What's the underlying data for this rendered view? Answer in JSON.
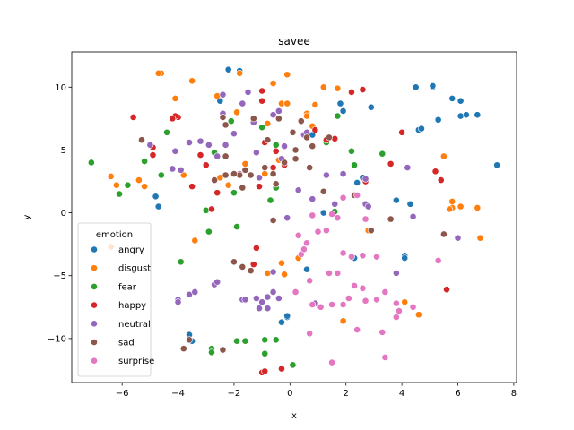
{
  "chart_data": {
    "type": "scatter",
    "title": "savee",
    "xlabel": "x",
    "ylabel": "y",
    "xlim": [
      -7.8,
      8.1
    ],
    "ylim": [
      -13.5,
      12.8
    ],
    "xticks": [
      -6,
      -4,
      -2,
      0,
      2,
      4,
      6,
      8
    ],
    "yticks": [
      -10,
      -5,
      0,
      5,
      10
    ],
    "grid": false,
    "legend": {
      "title": "emotion",
      "placement": "lower-left"
    },
    "series": [
      {
        "name": "angry",
        "color": "#1f77b4",
        "points": [
          [
            -2.2,
            11.4
          ],
          [
            -1.8,
            11.3
          ],
          [
            -2.5,
            8.9
          ],
          [
            4.5,
            10.0
          ],
          [
            5.1,
            10.0
          ],
          [
            5.1,
            10.1
          ],
          [
            5.8,
            9.1
          ],
          [
            6.1,
            8.9
          ],
          [
            1.8,
            8.7
          ],
          [
            2.9,
            8.4
          ],
          [
            1.9,
            8.1
          ],
          [
            6.1,
            7.7
          ],
          [
            6.3,
            7.8
          ],
          [
            6.7,
            7.8
          ],
          [
            5.3,
            7.4
          ],
          [
            4.6,
            6.6
          ],
          [
            4.7,
            6.7
          ],
          [
            0.8,
            6.2
          ],
          [
            7.4,
            3.8
          ],
          [
            2.4,
            2.4
          ],
          [
            2.6,
            2.8
          ],
          [
            3.8,
            1.0
          ],
          [
            4.3,
            0.7
          ],
          [
            -4.8,
            1.3
          ],
          [
            -4.7,
            0.5
          ],
          [
            2.9,
            -1.4
          ],
          [
            1.2,
            0.0
          ],
          [
            2.3,
            -3.6
          ],
          [
            0.6,
            -4.5
          ],
          [
            4.1,
            -3.4
          ],
          [
            4.1,
            -3.6
          ],
          [
            -0.1,
            -8.3
          ],
          [
            -0.1,
            -8.2
          ],
          [
            -0.3,
            -8.7
          ],
          [
            -3.6,
            -9.7
          ],
          [
            -3.5,
            -10.2
          ]
        ]
      },
      {
        "name": "disgust",
        "color": "#ff7f0e",
        "points": [
          [
            -4.6,
            11.1
          ],
          [
            -4.7,
            11.1
          ],
          [
            -1.8,
            11.1
          ],
          [
            -0.1,
            11.0
          ],
          [
            -3.5,
            10.5
          ],
          [
            -0.6,
            10.3
          ],
          [
            1.2,
            10.0
          ],
          [
            1.7,
            9.9
          ],
          [
            -0.3,
            8.7
          ],
          [
            -0.1,
            8.7
          ],
          [
            0.9,
            8.6
          ],
          [
            -2.6,
            9.3
          ],
          [
            -4.1,
            9.1
          ],
          [
            -1.9,
            8.0
          ],
          [
            0.6,
            7.9
          ],
          [
            0.6,
            7.7
          ],
          [
            -0.8,
            7.1
          ],
          [
            0.8,
            6.9
          ],
          [
            5.5,
            4.5
          ],
          [
            -0.4,
            4.2
          ],
          [
            -1.6,
            3.9
          ],
          [
            -3.8,
            3.0
          ],
          [
            -2.5,
            2.8
          ],
          [
            -2.2,
            2.2
          ],
          [
            -0.9,
            3.1
          ],
          [
            -6.4,
            2.9
          ],
          [
            -6.2,
            2.2
          ],
          [
            -5.4,
            2.6
          ],
          [
            -5.2,
            2.1
          ],
          [
            5.8,
            0.9
          ],
          [
            5.8,
            0.4
          ],
          [
            6.1,
            0.5
          ],
          [
            6.7,
            0.4
          ],
          [
            5.7,
            0.3
          ],
          [
            2.8,
            -1.4
          ],
          [
            6.8,
            -2.0
          ],
          [
            -6.4,
            -2.7
          ],
          [
            -0.8,
            -4.8
          ],
          [
            -0.3,
            -4.0
          ],
          [
            -0.2,
            -4.9
          ],
          [
            0.3,
            -3.6
          ],
          [
            4.1,
            -7.1
          ],
          [
            4.6,
            -8.1
          ],
          [
            1.9,
            -8.6
          ],
          [
            -3.4,
            -2.2
          ]
        ]
      },
      {
        "name": "fear",
        "color": "#2ca02c",
        "points": [
          [
            -7.1,
            4.0
          ],
          [
            -6.1,
            1.5
          ],
          [
            -5.8,
            2.2
          ],
          [
            -5.2,
            4.1
          ],
          [
            -4.4,
            6.4
          ],
          [
            -4.6,
            3.0
          ],
          [
            -3.9,
            -3.9
          ],
          [
            -3.0,
            0.2
          ],
          [
            -2.9,
            -1.5
          ],
          [
            -2.0,
            1.6
          ],
          [
            -1.9,
            -1.1
          ],
          [
            -0.7,
            1.0
          ],
          [
            -0.5,
            2.0
          ],
          [
            1.7,
            7.7
          ],
          [
            1.3,
            5.6
          ],
          [
            2.2,
            4.9
          ],
          [
            3.3,
            4.7
          ],
          [
            2.3,
            3.8
          ],
          [
            -1.0,
            6.8
          ],
          [
            -0.5,
            5.4
          ],
          [
            -0.9,
            -10.1
          ],
          [
            -0.9,
            -11.2
          ],
          [
            -1.9,
            -10.2
          ],
          [
            -1.6,
            -10.2
          ],
          [
            -2.8,
            -10.8
          ],
          [
            -2.8,
            -11.1
          ],
          [
            -0.5,
            -10.1
          ],
          [
            0.1,
            -12.1
          ],
          [
            1.6,
            0.1
          ],
          [
            -2.7,
            4.8
          ],
          [
            -2.1,
            7.3
          ]
        ]
      },
      {
        "name": "happy",
        "color": "#d62728",
        "points": [
          [
            -5.6,
            7.6
          ],
          [
            -4.0,
            7.6
          ],
          [
            -4.1,
            7.7
          ],
          [
            -4.2,
            7.5
          ],
          [
            -4.9,
            5.2
          ],
          [
            -4.9,
            4.6
          ],
          [
            -3.2,
            4.6
          ],
          [
            -3.0,
            3.8
          ],
          [
            -3.5,
            2.1
          ],
          [
            -2.6,
            1.6
          ],
          [
            -2.8,
            0.3
          ],
          [
            -1.0,
            9.7
          ],
          [
            -1.0,
            8.9
          ],
          [
            -0.9,
            5.6
          ],
          [
            -0.5,
            4.9
          ],
          [
            -0.6,
            3.6
          ],
          [
            -0.2,
            3.8
          ],
          [
            1.6,
            5.9
          ],
          [
            1.3,
            5.8
          ],
          [
            2.2,
            9.6
          ],
          [
            2.6,
            9.8
          ],
          [
            3.6,
            3.9
          ],
          [
            4.0,
            6.4
          ],
          [
            5.2,
            3.3
          ],
          [
            5.4,
            2.6
          ],
          [
            -1.1,
            2.1
          ],
          [
            -1.2,
            -2.8
          ],
          [
            -1.3,
            -4.1
          ],
          [
            -1.0,
            -12.7
          ],
          [
            -0.9,
            -12.6
          ],
          [
            -0.3,
            -12.4
          ],
          [
            5.6,
            -6.1
          ],
          [
            0.9,
            6.6
          ],
          [
            2.7,
            2.5
          ]
        ]
      },
      {
        "name": "neutral",
        "color": "#9467bd",
        "points": [
          [
            -2.4,
            9.4
          ],
          [
            -1.5,
            9.6
          ],
          [
            -1.7,
            8.7
          ],
          [
            -0.4,
            8.1
          ],
          [
            -0.6,
            7.8
          ],
          [
            -2.4,
            7.9
          ],
          [
            -1.3,
            7.2
          ],
          [
            -0.2,
            5.3
          ],
          [
            0.5,
            6.2
          ],
          [
            0.6,
            6.4
          ],
          [
            -5.0,
            5.4
          ],
          [
            -4.1,
            4.9
          ],
          [
            -3.6,
            5.6
          ],
          [
            -3.2,
            5.7
          ],
          [
            -2.0,
            6.3
          ],
          [
            -2.3,
            5.4
          ],
          [
            -2.9,
            5.4
          ],
          [
            -3.9,
            3.4
          ],
          [
            -4.2,
            3.5
          ],
          [
            -2.6,
            4.5
          ],
          [
            -1.2,
            4.8
          ],
          [
            -0.3,
            4.3
          ],
          [
            -1.8,
            3.1
          ],
          [
            -1.1,
            2.8
          ],
          [
            0.3,
            1.8
          ],
          [
            0.8,
            1.1
          ],
          [
            1.3,
            3.0
          ],
          [
            1.9,
            3.1
          ],
          [
            2.7,
            2.7
          ],
          [
            2.7,
            0.7
          ],
          [
            2.8,
            0.5
          ],
          [
            1.6,
            0.7
          ],
          [
            -0.1,
            -0.4
          ],
          [
            4.4,
            -0.3
          ],
          [
            6.0,
            -2.0
          ],
          [
            3.8,
            -4.8
          ],
          [
            -4.0,
            -6.9
          ],
          [
            -3.6,
            -6.5
          ],
          [
            -4.0,
            -7.1
          ],
          [
            -3.4,
            -6.3
          ],
          [
            -2.7,
            -5.7
          ],
          [
            -2.6,
            -5.5
          ],
          [
            -1.7,
            -6.9
          ],
          [
            -1.6,
            -6.9
          ],
          [
            -1.2,
            -6.8
          ],
          [
            -1.0,
            -7.1
          ],
          [
            -0.8,
            -6.7
          ],
          [
            -0.6,
            -6.3
          ],
          [
            -0.8,
            -7.6
          ],
          [
            -1.1,
            -7.6
          ],
          [
            -0.4,
            -6.8
          ],
          [
            0.9,
            -7.2
          ],
          [
            -0.6,
            -4.7
          ],
          [
            4.2,
            3.6
          ]
        ]
      },
      {
        "name": "sad",
        "color": "#8c564b",
        "points": [
          [
            -5.3,
            5.8
          ],
          [
            -2.4,
            7.6
          ],
          [
            -2.3,
            7.0
          ],
          [
            -1.3,
            7.5
          ],
          [
            -0.4,
            7.5
          ],
          [
            0.4,
            7.3
          ],
          [
            0.6,
            6.0
          ],
          [
            1.4,
            6.0
          ],
          [
            0.8,
            5.3
          ],
          [
            0.2,
            5.0
          ],
          [
            -0.8,
            5.8
          ],
          [
            -2.3,
            4.5
          ],
          [
            -1.6,
            3.4
          ],
          [
            -1.7,
            2.0
          ],
          [
            -2.3,
            3.0
          ],
          [
            -1.8,
            3.0
          ],
          [
            -1.4,
            3.0
          ],
          [
            -0.9,
            3.6
          ],
          [
            -0.6,
            3.1
          ],
          [
            -0.5,
            2.3
          ],
          [
            -0.2,
            4.0
          ],
          [
            0.1,
            6.4
          ],
          [
            0.2,
            4.3
          ],
          [
            0.7,
            3.6
          ],
          [
            1.2,
            1.7
          ],
          [
            2.3,
            1.4
          ],
          [
            3.6,
            -0.5
          ],
          [
            2.9,
            -1.4
          ],
          [
            5.5,
            -1.7
          ],
          [
            -2.0,
            -3.9
          ],
          [
            -1.4,
            -4.6
          ],
          [
            -1.7,
            -4.3
          ],
          [
            -3.8,
            -10.8
          ],
          [
            -3.6,
            -10.1
          ],
          [
            -2.4,
            -10.9
          ],
          [
            -0.6,
            -0.6
          ],
          [
            -2.0,
            3.1
          ],
          [
            -2.7,
            2.6
          ]
        ]
      },
      {
        "name": "surprise",
        "color": "#e377c2",
        "points": [
          [
            0.8,
            -0.2
          ],
          [
            1.5,
            -0.1
          ],
          [
            1.0,
            -1.5
          ],
          [
            1.3,
            -1.4
          ],
          [
            1.7,
            -0.4
          ],
          [
            2.7,
            -0.5
          ],
          [
            0.3,
            -1.8
          ],
          [
            0.6,
            -2.4
          ],
          [
            0.4,
            -3.3
          ],
          [
            0.5,
            -2.9
          ],
          [
            1.9,
            -3.2
          ],
          [
            2.2,
            -3.5
          ],
          [
            2.6,
            -3.4
          ],
          [
            3.1,
            -3.5
          ],
          [
            1.4,
            -4.8
          ],
          [
            1.7,
            -4.8
          ],
          [
            2.3,
            -5.8
          ],
          [
            2.6,
            -6.0
          ],
          [
            2.1,
            -6.8
          ],
          [
            1.9,
            -7.3
          ],
          [
            3.4,
            -6.3
          ],
          [
            3.1,
            -6.9
          ],
          [
            2.7,
            -7.0
          ],
          [
            1.5,
            -7.3
          ],
          [
            1.1,
            -7.5
          ],
          [
            0.8,
            -7.3
          ],
          [
            0.2,
            -6.3
          ],
          [
            0.7,
            -5.4
          ],
          [
            3.8,
            -7.2
          ],
          [
            3.9,
            -7.8
          ],
          [
            3.8,
            -8.3
          ],
          [
            4.4,
            -7.5
          ],
          [
            2.4,
            -9.3
          ],
          [
            3.3,
            -9.5
          ],
          [
            3.4,
            -11.5
          ],
          [
            1.5,
            -11.9
          ],
          [
            0.7,
            -9.6
          ],
          [
            5.3,
            -3.8
          ],
          [
            1.9,
            1.2
          ],
          [
            2.4,
            1.4
          ]
        ]
      }
    ]
  }
}
